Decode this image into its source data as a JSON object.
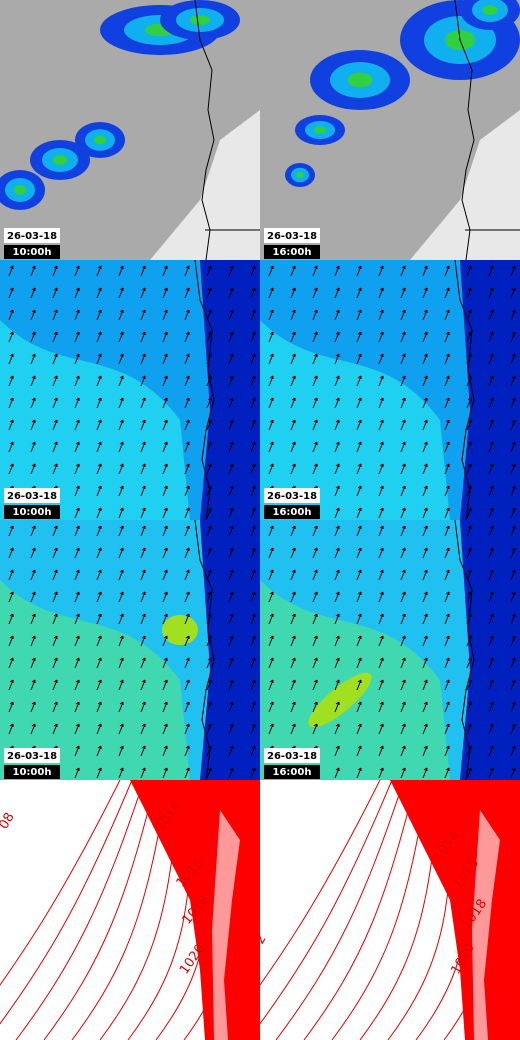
{
  "panels": [
    {
      "date": "26-03-18",
      "time": "10:00h"
    },
    {
      "date": "26-03-18",
      "time": "16:00h"
    },
    {
      "date": "26-03-18",
      "time": "10:00h"
    },
    {
      "date": "26-03-18",
      "time": "16:00h"
    },
    {
      "date": "26-03-18",
      "time": "10:00h"
    },
    {
      "date": "26-03-18",
      "time": "16:00h"
    }
  ],
  "isobar_panels": [
    {
      "labels": [
        "08",
        "1014",
        "1016",
        "1018",
        "1020"
      ]
    },
    {
      "labels": [
        "2",
        "1014",
        "1016",
        "1018",
        "1020"
      ]
    }
  ]
}
